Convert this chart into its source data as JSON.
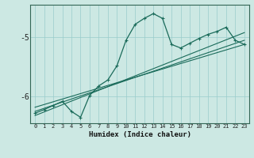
{
  "xlabel": "Humidex (Indice chaleur)",
  "bg_color": "#cce8e3",
  "grid_color": "#99cccc",
  "line_color": "#1a6b5a",
  "spine_color": "#336655",
  "xlim": [
    -0.5,
    23.5
  ],
  "ylim": [
    -6.45,
    -4.45
  ],
  "yticks": [
    -6,
    -5
  ],
  "ytick_labels": [
    "-6",
    "-5"
  ],
  "x_ticks": [
    0,
    1,
    2,
    3,
    4,
    5,
    6,
    7,
    8,
    9,
    10,
    11,
    12,
    13,
    14,
    15,
    16,
    17,
    18,
    19,
    20,
    21,
    22,
    23
  ],
  "main_y": [
    -6.28,
    -6.22,
    -6.15,
    -6.08,
    -6.25,
    -6.35,
    -5.98,
    -5.82,
    -5.72,
    -5.48,
    -5.05,
    -4.78,
    -4.68,
    -4.6,
    -4.68,
    -5.12,
    -5.18,
    -5.1,
    -5.02,
    -4.95,
    -4.9,
    -4.83,
    -5.05,
    -5.12
  ],
  "line1_x": [
    0,
    23
  ],
  "line1_y": [
    -6.32,
    -4.92
  ],
  "line2_x": [
    0,
    23
  ],
  "line2_y": [
    -6.25,
    -5.05
  ],
  "line3_x": [
    0,
    23
  ],
  "line3_y": [
    -6.18,
    -5.12
  ]
}
